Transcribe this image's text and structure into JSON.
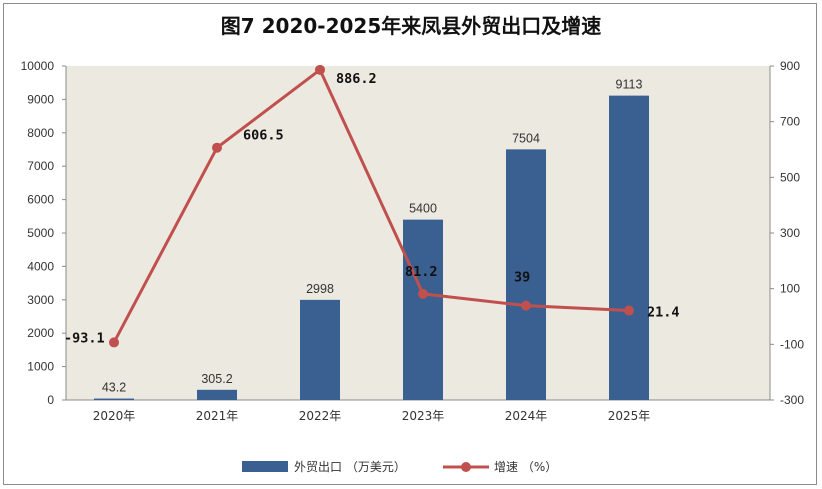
{
  "chart_data": {
    "type": "bar",
    "title": "图7  2020-2025年来凤县外贸出口及增速",
    "categories": [
      "2020年",
      "2021年",
      "2022年",
      "2023年",
      "2024年",
      "2025年"
    ],
    "series": [
      {
        "name": "外贸出口 （万美元）",
        "kind": "bar",
        "axis": "left",
        "color": "#3a5f91",
        "values": [
          43.2,
          305.2,
          2998,
          5400,
          7504,
          9113
        ],
        "labels": [
          "43.2",
          "305.2",
          "2998",
          "5400",
          "7504",
          "9113"
        ]
      },
      {
        "name": "增速 （%）",
        "kind": "line",
        "axis": "right",
        "color": "#c0504d",
        "values": [
          -93.1,
          606.5,
          886.2,
          81.2,
          39,
          21.4
        ],
        "labels": [
          "-93.1",
          "606.5",
          "886.2",
          "81.2",
          "39",
          "21.4"
        ]
      }
    ],
    "ylim": [
      0,
      10000
    ],
    "y_ticks": [
      "0",
      "1000",
      "2000",
      "3000",
      "4000",
      "5000",
      "6000",
      "7000",
      "8000",
      "9000",
      "10000"
    ],
    "y2lim": [
      -300,
      900
    ],
    "y2_ticks": [
      "-300",
      "-100",
      "100",
      "300",
      "500",
      "700",
      "900"
    ],
    "plot_background": "#ece9e1",
    "grid": false,
    "legend_position": "bottom"
  }
}
